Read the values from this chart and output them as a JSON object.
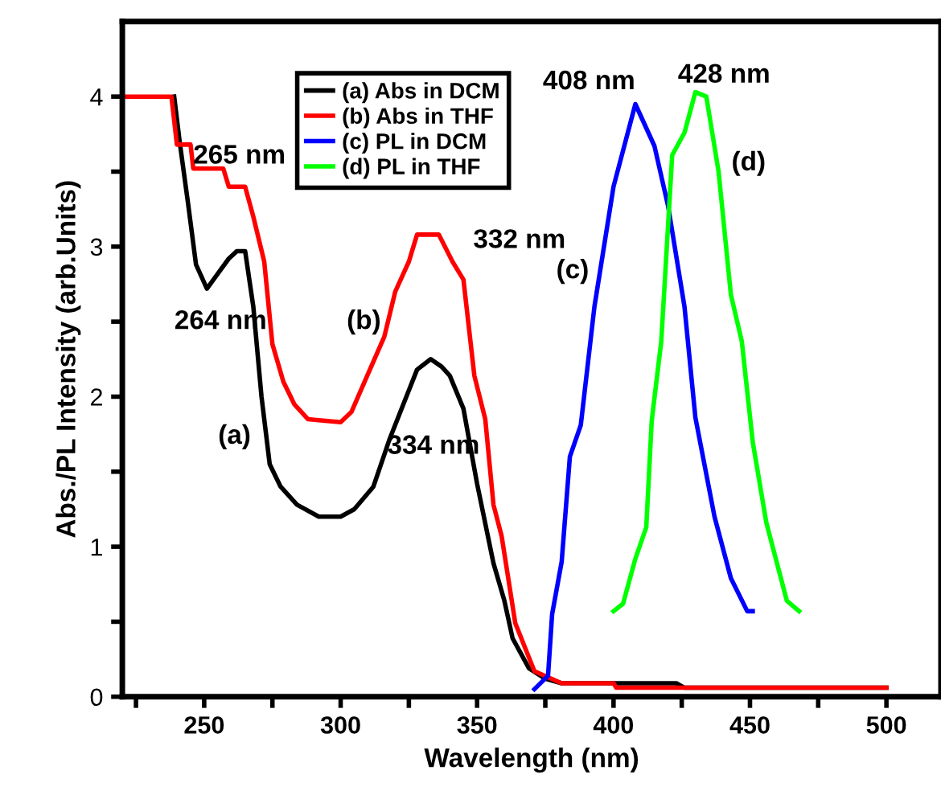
{
  "chart_data": {
    "type": "line",
    "xlabel": "Wavelength (nm)",
    "ylabel": "Abs./PL Intensity (arb.Units)",
    "xlim": [
      220,
      520
    ],
    "ylim": [
      0,
      4.5
    ],
    "xticks": [
      {
        "value": 225,
        "label": null
      },
      250,
      {
        "value": 275,
        "label": null
      },
      300,
      {
        "value": 325,
        "label": null
      },
      350,
      {
        "value": 375,
        "label": null
      },
      400,
      {
        "value": 425,
        "label": null
      },
      450,
      {
        "value": 475,
        "label": null
      },
      500
    ],
    "yticks": [
      0,
      {
        "value": 0.5,
        "label": null
      },
      1,
      {
        "value": 1.5,
        "label": null
      },
      2,
      {
        "value": 2.5,
        "label": null
      },
      3,
      {
        "value": 3.5,
        "label": null
      },
      4
    ],
    "grid": false,
    "legend": "top",
    "marker": "none",
    "line_style": "solid",
    "series": [
      {
        "name": "(a) Abs in DCM",
        "color": "#000000",
        "x": [
          239,
          241,
          244,
          247,
          251,
          255,
          259,
          262,
          265,
          268,
          271,
          274,
          278,
          284,
          292,
          300,
          305,
          312,
          318,
          323,
          328,
          333,
          337,
          340,
          345,
          350,
          356,
          360,
          363,
          369,
          375,
          381,
          400,
          423,
          426,
          500
        ],
        "values": [
          4.0,
          3.7,
          3.3,
          2.88,
          2.72,
          2.82,
          2.92,
          2.97,
          2.97,
          2.6,
          2.0,
          1.55,
          1.4,
          1.28,
          1.2,
          1.2,
          1.25,
          1.4,
          1.72,
          1.95,
          2.18,
          2.25,
          2.2,
          2.14,
          1.92,
          1.42,
          0.89,
          0.64,
          0.39,
          0.19,
          0.12,
          0.09,
          0.09,
          0.09,
          0.06,
          0.06
        ]
      },
      {
        "name": "(b) Abs in THF",
        "color": "#ff0000",
        "x": [
          220,
          238,
          240,
          245,
          246,
          257,
          259,
          265,
          268,
          272,
          275,
          279,
          283,
          288,
          300,
          304,
          310,
          316,
          320,
          325,
          328,
          336,
          341,
          345,
          349,
          353,
          356,
          359,
          364,
          371,
          381,
          400,
          401,
          500
        ],
        "values": [
          4.0,
          4.0,
          3.68,
          3.68,
          3.52,
          3.52,
          3.4,
          3.4,
          3.2,
          2.9,
          2.35,
          2.1,
          1.95,
          1.85,
          1.83,
          1.9,
          2.15,
          2.4,
          2.7,
          2.9,
          3.08,
          3.08,
          2.9,
          2.78,
          2.14,
          1.85,
          1.28,
          1.07,
          0.49,
          0.17,
          0.09,
          0.09,
          0.06,
          0.06
        ]
      },
      {
        "name": "(c) PL in DCM",
        "color": "#0000ff",
        "x": [
          371,
          376,
          377.5,
          381,
          384,
          388,
          393,
          400,
          408,
          415,
          420,
          426,
          430,
          437,
          443,
          449,
          451
        ],
        "values": [
          0.05,
          0.14,
          0.55,
          0.9,
          1.6,
          1.81,
          2.6,
          3.4,
          3.95,
          3.67,
          3.27,
          2.6,
          1.86,
          1.2,
          0.79,
          0.57,
          0.57
        ]
      },
      {
        "name": "(d) PL in THF",
        "color": "#00ff00",
        "x": [
          400,
          403.5,
          408,
          412,
          414,
          417.5,
          421.5,
          426,
          430,
          434,
          438.5,
          443,
          447,
          451,
          456,
          463.5,
          468
        ],
        "values": [
          0.57,
          0.62,
          0.92,
          1.13,
          1.84,
          2.37,
          3.61,
          3.76,
          4.03,
          4.0,
          3.5,
          2.68,
          2.37,
          1.7,
          1.16,
          0.64,
          0.57
        ]
      }
    ],
    "annotations": [
      "265 nm",
      "264 nm",
      "332 nm",
      "334 nm",
      "408 nm",
      "428 nm",
      "(a)",
      "(b)",
      "(c)",
      "(d)"
    ]
  }
}
